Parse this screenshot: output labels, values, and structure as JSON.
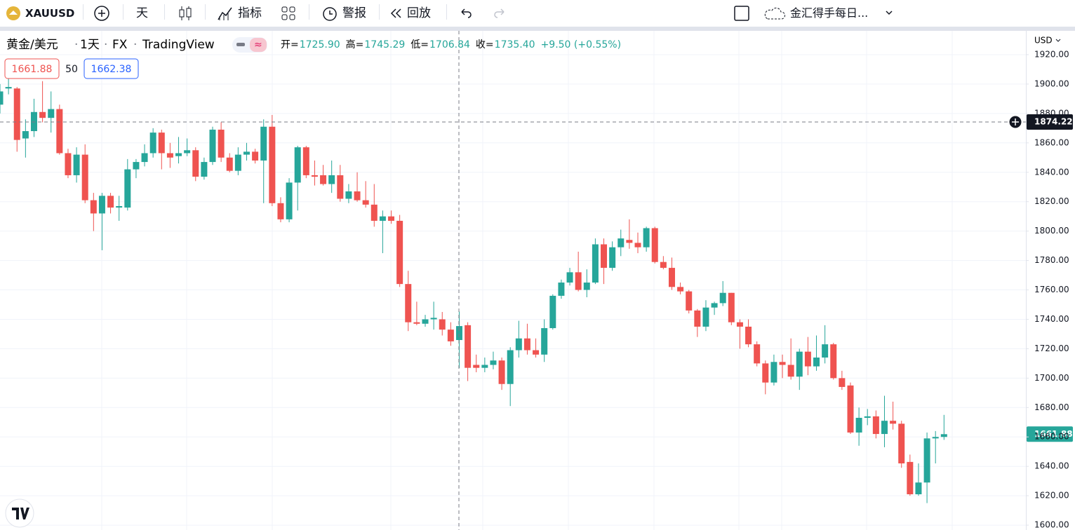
{
  "toolbar": {
    "symbol": "XAUUSD",
    "interval": "天",
    "indicators": "指标",
    "alert": "警报",
    "replay": "回放",
    "layout_name": "金汇得手每日..."
  },
  "legend": {
    "pair": "黄金/美元",
    "interval": "1天",
    "exchange": "FX",
    "source": "TradingView",
    "ohlc": [
      {
        "label": "开=",
        "value": "1725.90"
      },
      {
        "label": "高=",
        "value": "1745.29"
      },
      {
        "label": "低=",
        "value": "1706.84"
      },
      {
        "label": "收=",
        "value": "1735.40"
      }
    ],
    "change": "+9.50 (+0.55%)"
  },
  "indicator": {
    "bid": "1661.88",
    "spread": "50",
    "ask": "1662.38"
  },
  "currency": "USD",
  "chart_data": {
    "type": "candlestick",
    "candles": [
      [
        1886,
        1900,
        1880,
        1895
      ],
      [
        1897,
        1905,
        1893,
        1898
      ],
      [
        1897,
        1898,
        1854,
        1862
      ],
      [
        1863,
        1876,
        1850,
        1868
      ],
      [
        1868,
        1890,
        1864,
        1881
      ],
      [
        1881,
        1902,
        1874,
        1877
      ],
      [
        1877,
        1895,
        1867,
        1883
      ],
      [
        1883,
        1886,
        1852,
        1853
      ],
      [
        1853,
        1856,
        1836,
        1838
      ],
      [
        1838,
        1857,
        1833,
        1852
      ],
      [
        1852,
        1859,
        1819,
        1821
      ],
      [
        1821,
        1826,
        1800,
        1812
      ],
      [
        1812,
        1826,
        1787,
        1824
      ],
      [
        1824,
        1826,
        1812,
        1816
      ],
      [
        1816,
        1824,
        1807,
        1817
      ],
      [
        1816,
        1849,
        1814,
        1842
      ],
      [
        1842,
        1849,
        1836,
        1847
      ],
      [
        1847,
        1859,
        1844,
        1853
      ],
      [
        1853,
        1870,
        1850,
        1867
      ],
      [
        1867,
        1869,
        1842,
        1853
      ],
      [
        1853,
        1860,
        1843,
        1850
      ],
      [
        1851,
        1864,
        1846,
        1853
      ],
      [
        1853,
        1863,
        1851,
        1855
      ],
      [
        1855,
        1857,
        1834,
        1837
      ],
      [
        1837,
        1850,
        1835,
        1847
      ],
      [
        1847,
        1871,
        1845,
        1869
      ],
      [
        1869,
        1874,
        1847,
        1850
      ],
      [
        1850,
        1853,
        1840,
        1841
      ],
      [
        1841,
        1857,
        1838,
        1852
      ],
      [
        1852,
        1860,
        1848,
        1854
      ],
      [
        1854,
        1856,
        1846,
        1848
      ],
      [
        1848,
        1876,
        1819,
        1871
      ],
      [
        1871,
        1879,
        1817,
        1819
      ],
      [
        1819,
        1823,
        1806,
        1808
      ],
      [
        1808,
        1836,
        1806,
        1833
      ],
      [
        1833,
        1858,
        1814,
        1857
      ],
      [
        1857,
        1858,
        1836,
        1838
      ],
      [
        1838,
        1848,
        1831,
        1837
      ],
      [
        1838,
        1845,
        1831,
        1832
      ],
      [
        1832,
        1848,
        1826,
        1838
      ],
      [
        1838,
        1845,
        1820,
        1822
      ],
      [
        1822,
        1832,
        1819,
        1827
      ],
      [
        1827,
        1840,
        1820,
        1821
      ],
      [
        1821,
        1834,
        1816,
        1818
      ],
      [
        1818,
        1832,
        1803,
        1807
      ],
      [
        1807,
        1814,
        1785,
        1810
      ],
      [
        1810,
        1814,
        1805,
        1807
      ],
      [
        1807,
        1811,
        1762,
        1764
      ],
      [
        1764,
        1773,
        1732,
        1738
      ],
      [
        1738,
        1752,
        1736,
        1737
      ],
      [
        1737,
        1743,
        1735,
        1740
      ],
      [
        1740,
        1752,
        1733,
        1741
      ],
      [
        1740,
        1745,
        1729,
        1733
      ],
      [
        1733,
        1738,
        1722,
        1725
      ],
      [
        1725.9,
        1745.29,
        1706.84,
        1735.4
      ],
      [
        1736,
        1738,
        1698,
        1707
      ],
      [
        1709,
        1716,
        1704,
        1707
      ],
      [
        1707,
        1714,
        1704,
        1709
      ],
      [
        1709,
        1718,
        1706,
        1712
      ],
      [
        1712,
        1714,
        1692,
        1696
      ],
      [
        1696,
        1721,
        1681,
        1719
      ],
      [
        1719,
        1739,
        1714,
        1727
      ],
      [
        1727,
        1737,
        1716,
        1719
      ],
      [
        1719,
        1727,
        1714,
        1716
      ],
      [
        1716,
        1740,
        1711,
        1734
      ],
      [
        1734,
        1757,
        1733,
        1756
      ],
      [
        1756,
        1767,
        1754,
        1765
      ],
      [
        1765,
        1775,
        1763,
        1772
      ],
      [
        1772,
        1786,
        1759,
        1760
      ],
      [
        1760,
        1774,
        1755,
        1765
      ],
      [
        1765,
        1795,
        1764,
        1791
      ],
      [
        1791,
        1795,
        1764,
        1775
      ],
      [
        1775,
        1793,
        1773,
        1789
      ],
      [
        1789,
        1801,
        1783,
        1795
      ],
      [
        1794,
        1808,
        1788,
        1792
      ],
      [
        1792,
        1799,
        1785,
        1789
      ],
      [
        1789,
        1803,
        1786,
        1802
      ],
      [
        1802,
        1803,
        1778,
        1779
      ],
      [
        1779,
        1783,
        1774,
        1775
      ],
      [
        1775,
        1782,
        1760,
        1762
      ],
      [
        1762,
        1765,
        1757,
        1759
      ],
      [
        1759,
        1760,
        1744,
        1746
      ],
      [
        1746,
        1747,
        1728,
        1735
      ],
      [
        1735,
        1753,
        1732,
        1748
      ],
      [
        1748,
        1752,
        1743,
        1751
      ],
      [
        1751,
        1766,
        1749,
        1758
      ],
      [
        1758,
        1758,
        1736,
        1738
      ],
      [
        1738,
        1740,
        1720,
        1735
      ],
      [
        1735,
        1740,
        1721,
        1723
      ],
      [
        1723,
        1725,
        1708,
        1710
      ],
      [
        1710,
        1712,
        1689,
        1697
      ],
      [
        1697,
        1716,
        1695,
        1711
      ],
      [
        1711,
        1716,
        1700,
        1709
      ],
      [
        1709,
        1727,
        1699,
        1701
      ],
      [
        1701,
        1720,
        1692,
        1718
      ],
      [
        1718,
        1728,
        1702,
        1708
      ],
      [
        1708,
        1729,
        1705,
        1714
      ],
      [
        1714,
        1736,
        1710,
        1723
      ],
      [
        1723,
        1724,
        1699,
        1700
      ],
      [
        1700,
        1705,
        1692,
        1694
      ],
      [
        1695,
        1697,
        1662,
        1663
      ],
      [
        1663,
        1680,
        1654,
        1673
      ],
      [
        1673,
        1679,
        1668,
        1674
      ],
      [
        1674,
        1678,
        1659,
        1662
      ],
      [
        1662,
        1688,
        1653,
        1671
      ],
      [
        1671,
        1684,
        1665,
        1669
      ],
      [
        1669,
        1671,
        1639,
        1642
      ],
      [
        1643,
        1648,
        1620,
        1621
      ],
      [
        1621,
        1642,
        1620,
        1629
      ],
      [
        1629,
        1663,
        1615,
        1659
      ],
      [
        1659,
        1664,
        1642,
        1660
      ],
      [
        1660,
        1675,
        1658,
        1661.88
      ]
    ],
    "up_color": "#26a69a",
    "down_color": "#ef5350",
    "ylim": [
      1596.7,
      1936.2
    ],
    "yticks": [
      {
        "value": 1600,
        "label": "1600.00"
      },
      {
        "value": 1620,
        "label": "1620.00"
      },
      {
        "value": 1640,
        "label": "1640.00"
      },
      {
        "value": 1660,
        "label": "1660.00"
      },
      {
        "value": 1680,
        "label": "1680.00"
      },
      {
        "value": 1700,
        "label": "1700.00"
      },
      {
        "value": 1720,
        "label": "1720.00"
      },
      {
        "value": 1740,
        "label": "1740.00"
      },
      {
        "value": 1760,
        "label": "1760.00"
      },
      {
        "value": 1780,
        "label": "1780.00"
      },
      {
        "value": 1800,
        "label": "1800.00"
      },
      {
        "value": 1820,
        "label": "1820.00"
      },
      {
        "value": 1840,
        "label": "1840.00"
      },
      {
        "value": 1860,
        "label": "1860.00"
      },
      {
        "value": 1880,
        "label": "1880.00"
      },
      {
        "value": 1900,
        "label": "1900.00"
      },
      {
        "value": 1920,
        "label": "1920.00"
      }
    ],
    "grid": true,
    "crosshair_price": {
      "value": 1874.22,
      "label": "1874.22"
    },
    "last_price": {
      "value": 1661.88,
      "label": "1661.88"
    }
  }
}
